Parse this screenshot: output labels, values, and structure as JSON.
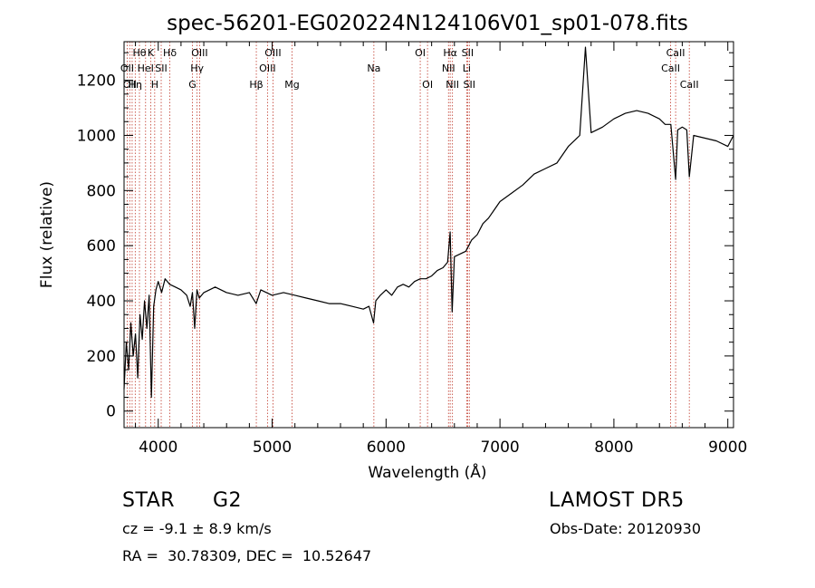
{
  "chart_data": {
    "type": "line",
    "title": "spec-56201-EG020224N124106V01_sp01-078.fits",
    "xlabel": "Wavelength (Å)",
    "ylabel": "Flux (relative)",
    "xlim": [
      3700,
      9050
    ],
    "ylim": [
      -60,
      1340
    ],
    "xticks": [
      4000,
      5000,
      6000,
      7000,
      8000,
      9000
    ],
    "yticks": [
      0,
      200,
      400,
      600,
      800,
      1000,
      1200
    ],
    "grid": false,
    "series": [
      {
        "x": [
          3700,
          3720,
          3740,
          3760,
          3780,
          3800,
          3820,
          3840,
          3860,
          3880,
          3900,
          3920,
          3940,
          3960,
          3980,
          4000,
          4030,
          4060,
          4100,
          4150,
          4200,
          4250,
          4280,
          4300,
          4320,
          4340,
          4360,
          4400,
          4450,
          4500,
          4600,
          4700,
          4800,
          4860,
          4900,
          5000,
          5100,
          5200,
          5300,
          5400,
          5500,
          5600,
          5700,
          5800,
          5850,
          5890,
          5910,
          5950,
          6000,
          6050,
          6100,
          6150,
          6200,
          6250,
          6300,
          6350,
          6400,
          6450,
          6500,
          6540,
          6563,
          6580,
          6600,
          6650,
          6700,
          6750,
          6800,
          6850,
          6900,
          6950,
          7000,
          7100,
          7200,
          7300,
          7400,
          7500,
          7600,
          7700,
          7750,
          7800,
          7900,
          8000,
          8100,
          8200,
          8300,
          8400,
          8450,
          8500,
          8542,
          8560,
          8600,
          8640,
          8662,
          8700,
          8800,
          8900,
          9000,
          9050
        ],
        "y": [
          80,
          250,
          150,
          320,
          200,
          280,
          120,
          350,
          260,
          400,
          300,
          420,
          50,
          380,
          440,
          470,
          430,
          480,
          460,
          450,
          440,
          420,
          380,
          430,
          300,
          440,
          410,
          430,
          440,
          450,
          430,
          420,
          430,
          390,
          440,
          420,
          430,
          420,
          410,
          400,
          390,
          390,
          380,
          370,
          380,
          320,
          400,
          420,
          440,
          420,
          450,
          460,
          450,
          470,
          480,
          480,
          490,
          510,
          520,
          540,
          650,
          360,
          560,
          570,
          580,
          620,
          640,
          680,
          700,
          730,
          760,
          790,
          820,
          860,
          880,
          900,
          960,
          1000,
          1320,
          1010,
          1030,
          1060,
          1080,
          1090,
          1080,
          1060,
          1040,
          1040,
          840,
          1020,
          1030,
          1020,
          850,
          1000,
          990,
          980,
          960,
          1000
        ]
      }
    ],
    "line_labels": {
      "top": [
        "Hθ",
        "K",
        "Hδ",
        "OIII",
        "OIII",
        "OI",
        "Hα",
        "SII",
        "CaII"
      ],
      "mid": [
        "OII",
        "HeI",
        "SII",
        "Hγ",
        "OIII",
        "Na",
        "NII",
        "Li",
        "CaII"
      ],
      "low": [
        "OII",
        "Hη",
        "H",
        "G",
        "Hβ",
        "Mg",
        "OI",
        "NII",
        "SII",
        "CaII"
      ]
    },
    "emission_lines": [
      3727,
      3750,
      3771,
      3798,
      3835,
      3889,
      3934,
      3969,
      4026,
      4102,
      4300,
      4341,
      4363,
      4861,
      4959,
      5007,
      5175,
      5893,
      6300,
      6364,
      6548,
      6563,
      6583,
      6708,
      6716,
      6731,
      8498,
      8542,
      8662
    ]
  },
  "info": {
    "object_class": "STAR",
    "subclass": "G2",
    "survey": "LAMOST DR5",
    "redshift_text": "cz = -9.1 ± 8.9 km/s",
    "obs_date": "Obs-Date: 20120930",
    "coords": "RA =  30.78309, DEC =  10.52647"
  },
  "colors": {
    "spectrum": "#000000",
    "line_marker": "#c0392b",
    "axis": "#000000"
  }
}
